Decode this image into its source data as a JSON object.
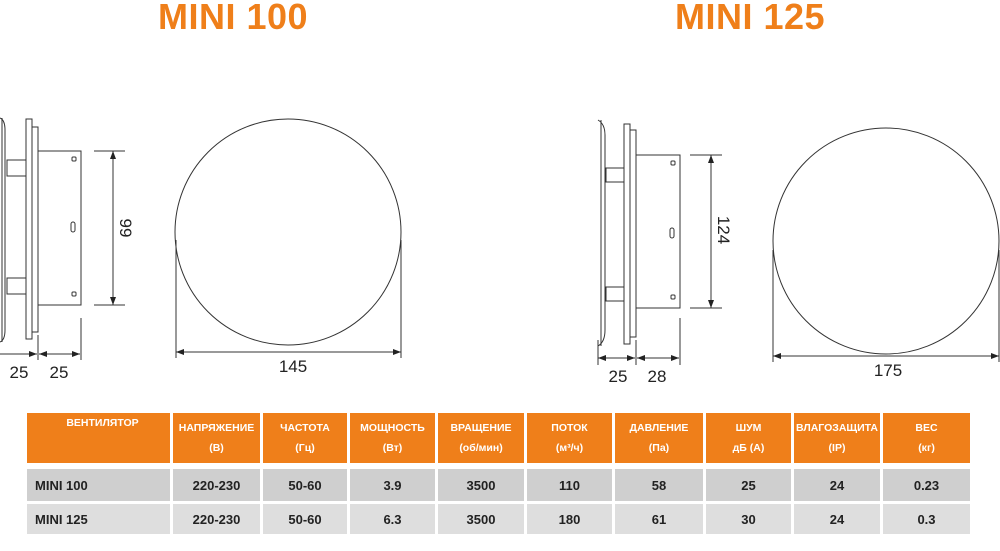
{
  "titles": [
    "MINI 100",
    "MINI 125"
  ],
  "dimensions": {
    "mini100": {
      "height": "99",
      "depth_a": "25",
      "depth_b": "25",
      "diameter": "145"
    },
    "mini125": {
      "height": "124",
      "depth_a": "25",
      "depth_b": "28",
      "diameter": "175"
    }
  },
  "colors": {
    "accent": "#ef7f1a",
    "row": "#cfcfcf"
  },
  "table": {
    "headers": [
      [
        "ВЕНТИЛЯТОР",
        ""
      ],
      [
        "НАПРЯЖЕНИЕ",
        "(В)"
      ],
      [
        "ЧАСТОТА",
        "(Гц)"
      ],
      [
        "МОЩНОСТЬ",
        "(Вт)"
      ],
      [
        "ВРАЩЕНИЕ",
        "(об/мин)"
      ],
      [
        "ПОТОК",
        "(м³/ч)"
      ],
      [
        "ДАВЛЕНИЕ",
        "(Па)"
      ],
      [
        "ШУМ",
        "дБ (А)"
      ],
      [
        "ВЛАГОЗАЩИТА",
        "(IP)"
      ],
      [
        "ВЕС",
        "(кг)"
      ]
    ],
    "rows": [
      [
        "MINI 100",
        "220-230",
        "50-60",
        "3.9",
        "3500",
        "110",
        "58",
        "25",
        "24",
        "0.23"
      ],
      [
        "MINI 125",
        "220-230",
        "50-60",
        "6.3",
        "3500",
        "180",
        "61",
        "30",
        "24",
        "0.3"
      ]
    ]
  }
}
